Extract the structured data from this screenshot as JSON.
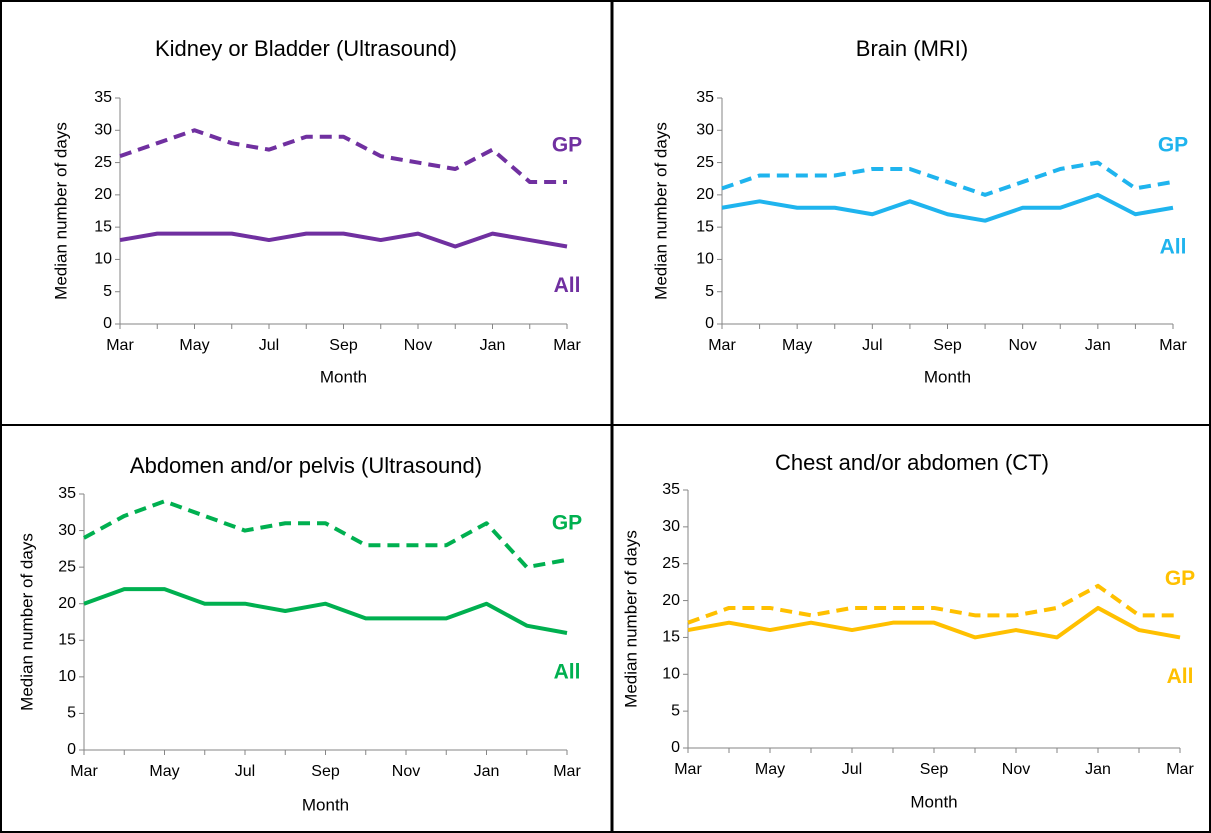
{
  "chart_data": [
    {
      "type": "line",
      "title": "Kidney or Bladder (Ultrasound)",
      "x_label": "Month",
      "y_label": "Median number of days",
      "categories": [
        "Mar",
        null,
        "May",
        null,
        "Jul",
        null,
        "Sep",
        null,
        "Nov",
        null,
        "Jan",
        null,
        "Mar"
      ],
      "series": [
        {
          "name": "GP",
          "color": "#7030a0",
          "line_style": "dashed",
          "values": [
            26,
            28,
            30,
            28,
            27,
            29,
            29,
            26,
            25,
            24,
            27,
            22,
            22
          ]
        },
        {
          "name": "All",
          "color": "#7030a0",
          "line_style": "solid",
          "values": [
            13,
            14,
            14,
            14,
            13,
            14,
            14,
            13,
            14,
            12,
            14,
            13,
            12
          ]
        }
      ],
      "ylim": [
        0,
        35
      ],
      "yticks": [
        0,
        5,
        10,
        15,
        20,
        25,
        30,
        35
      ]
    },
    {
      "type": "line",
      "title": "Brain (MRI)",
      "x_label": "Month",
      "y_label": "Median number of days",
      "categories": [
        "Mar",
        null,
        "May",
        null,
        "Jul",
        null,
        "Sep",
        null,
        "Nov",
        null,
        "Jan",
        null,
        "Mar"
      ],
      "series": [
        {
          "name": "GP",
          "color": "#1fb4ee",
          "line_style": "dashed",
          "values": [
            21,
            23,
            23,
            23,
            24,
            24,
            22,
            20,
            22,
            24,
            25,
            21,
            22
          ]
        },
        {
          "name": "All",
          "color": "#1fb4ee",
          "line_style": "solid",
          "values": [
            18,
            19,
            18,
            18,
            17,
            19,
            17,
            16,
            18,
            18,
            20,
            17,
            18
          ]
        }
      ],
      "ylim": [
        0,
        35
      ],
      "yticks": [
        0,
        5,
        10,
        15,
        20,
        25,
        30,
        35
      ]
    },
    {
      "type": "line",
      "title": "Abdomen and/or pelvis (Ultrasound)",
      "x_label": "Month",
      "y_label": "Median number of days",
      "categories": [
        "Mar",
        null,
        "May",
        null,
        "Jul",
        null,
        "Sep",
        null,
        "Nov",
        null,
        "Jan",
        null,
        "Mar"
      ],
      "series": [
        {
          "name": "GP",
          "color": "#00b050",
          "line_style": "dashed",
          "values": [
            29,
            32,
            34,
            32,
            30,
            31,
            31,
            28,
            28,
            28,
            31,
            25,
            26
          ]
        },
        {
          "name": "All",
          "color": "#00b050",
          "line_style": "solid",
          "values": [
            20,
            22,
            22,
            20,
            20,
            19,
            20,
            18,
            18,
            18,
            20,
            17,
            16
          ]
        }
      ],
      "ylim": [
        0,
        35
      ],
      "yticks": [
        0,
        5,
        10,
        15,
        20,
        25,
        30,
        35
      ]
    },
    {
      "type": "line",
      "title": "Chest and/or abdomen (CT)",
      "x_label": "Month",
      "y_label": "Median number of days",
      "categories": [
        "Mar",
        null,
        "May",
        null,
        "Jul",
        null,
        "Sep",
        null,
        "Nov",
        null,
        "Jan",
        null,
        "Mar"
      ],
      "series": [
        {
          "name": "GP",
          "color": "#ffc000",
          "line_style": "dashed",
          "values": [
            17,
            19,
            19,
            18,
            19,
            19,
            19,
            18,
            18,
            19,
            22,
            18,
            18
          ]
        },
        {
          "name": "All",
          "color": "#ffc000",
          "line_style": "solid",
          "values": [
            16,
            17,
            16,
            17,
            16,
            17,
            17,
            15,
            16,
            15,
            19,
            16,
            15
          ]
        }
      ],
      "ylim": [
        0,
        35
      ],
      "yticks": [
        0,
        5,
        10,
        15,
        20,
        25,
        30,
        35
      ]
    }
  ]
}
